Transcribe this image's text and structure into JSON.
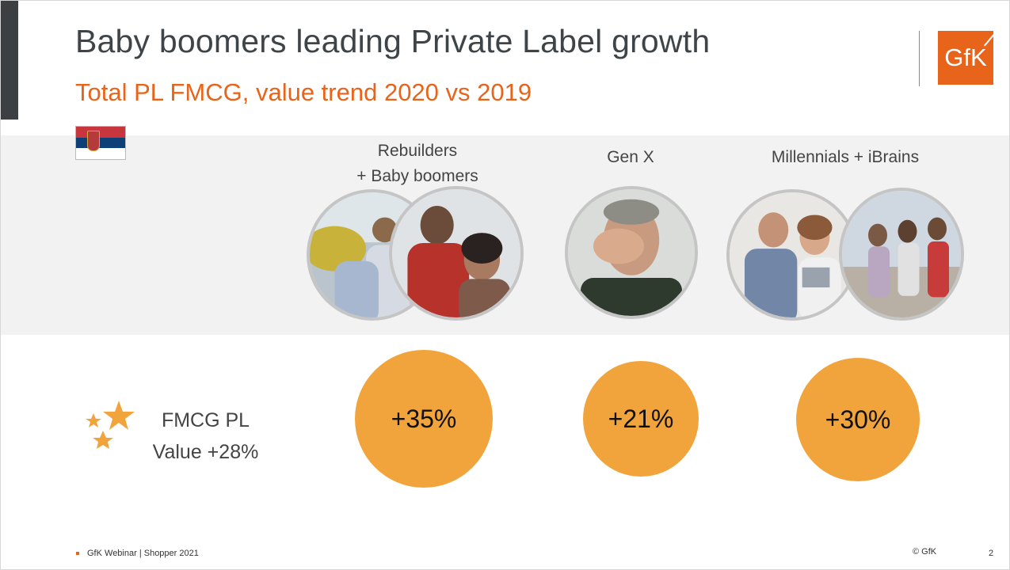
{
  "slide": {
    "title": "Baby boomers leading Private Label growth",
    "subtitle": "Total PL FMCG, value trend 2020 vs 2019",
    "logo_text": "GfK",
    "accent_color": "#e8641a",
    "bubble_color": "#f2a43c",
    "flag": "serbia-flag"
  },
  "segments": [
    {
      "label_line1": "Rebuilders",
      "label_line2": "+ Baby boomers",
      "value": "+35%"
    },
    {
      "label_line1": "Gen X",
      "value": "+21%"
    },
    {
      "label_line1": "Millennials + iBrains",
      "value": "+30%"
    }
  ],
  "summary": {
    "line1": "FMCG PL",
    "line2": "Value +28%",
    "icon": "stars-icon"
  },
  "footer": {
    "text": "GfK Webinar | Shopper 2021",
    "copyright": "© GfK",
    "page_number": "2"
  }
}
